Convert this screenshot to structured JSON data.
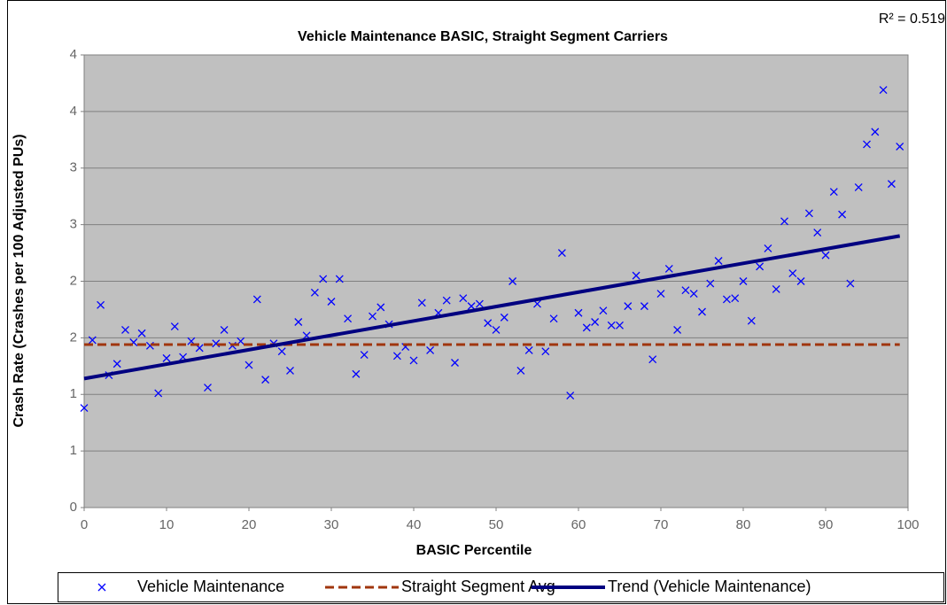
{
  "chart_data": {
    "type": "scatter",
    "title": "Vehicle Maintenance BASIC, Straight Segment Carriers",
    "xlabel": "BASIC Percentile",
    "ylabel": "Crash Rate (Crashes per 100 Adjusted PUs)",
    "annotation": "R² = 0.519",
    "xlim": [
      0,
      100
    ],
    "xticks": [
      0,
      10,
      20,
      30,
      40,
      50,
      60,
      70,
      80,
      90,
      100
    ],
    "ylim": [
      0,
      4
    ],
    "yticks": [
      0,
      {
        "value": 0.5,
        "label": "1"
      },
      1,
      {
        "value": 1.5,
        "label": "2"
      },
      2,
      {
        "value": 2.5,
        "label": "3"
      },
      3,
      {
        "value": 3.5,
        "label": "4"
      },
      4
    ],
    "grid": true,
    "legend": "bottom",
    "series": [
      {
        "name": "Vehicle Maintenance",
        "color": "#0000ff",
        "style": "marker",
        "x": [
          0,
          1,
          2,
          3,
          4,
          5,
          6,
          7,
          8,
          9,
          10,
          11,
          12,
          13,
          14,
          15,
          16,
          17,
          18,
          19,
          20,
          21,
          22,
          23,
          24,
          25,
          26,
          27,
          28,
          29,
          30,
          31,
          32,
          33,
          34,
          35,
          36,
          37,
          38,
          39,
          40,
          41,
          42,
          43,
          44,
          45,
          46,
          47,
          48,
          49,
          50,
          51,
          52,
          53,
          54,
          55,
          56,
          57,
          58,
          59,
          60,
          61,
          62,
          63,
          64,
          65,
          66,
          67,
          68,
          69,
          70,
          71,
          72,
          73,
          74,
          75,
          76,
          77,
          78,
          79,
          80,
          81,
          82,
          83,
          84,
          85,
          86,
          87,
          88,
          89,
          90,
          91,
          92,
          93,
          94,
          95,
          96,
          97,
          98,
          99
        ],
        "values": [
          0.88,
          1.48,
          1.79,
          1.17,
          1.27,
          1.57,
          1.46,
          1.54,
          1.43,
          1.01,
          1.32,
          1.6,
          1.33,
          1.47,
          1.41,
          1.06,
          1.45,
          1.57,
          1.43,
          1.47,
          1.26,
          1.84,
          1.13,
          1.45,
          1.38,
          1.21,
          1.64,
          1.52,
          1.9,
          2.02,
          1.82,
          2.02,
          1.67,
          1.18,
          1.35,
          1.69,
          1.77,
          1.62,
          1.34,
          1.42,
          1.3,
          1.81,
          1.39,
          1.72,
          1.83,
          1.28,
          1.85,
          1.78,
          1.8,
          1.63,
          1.57,
          1.68,
          2.0,
          1.21,
          1.39,
          1.8,
          1.38,
          1.67,
          2.25,
          0.99,
          1.72,
          1.59,
          1.64,
          1.74,
          1.61,
          1.61,
          1.78,
          2.05,
          1.78,
          1.31,
          1.89,
          2.11,
          1.57,
          1.92,
          1.89,
          1.73,
          1.98,
          2.18,
          1.84,
          1.85,
          2.0,
          1.65,
          2.13,
          2.29,
          1.93,
          2.53,
          2.07,
          2.0,
          2.6,
          2.43,
          2.23,
          2.79,
          2.59,
          1.98,
          2.83,
          3.21,
          3.32,
          3.69,
          2.86,
          3.19
        ]
      },
      {
        "name": "Straight Segment Avg",
        "color": "#a0360e",
        "style": "dashed",
        "x": [
          0,
          99
        ],
        "values": [
          1.44,
          1.44
        ]
      },
      {
        "name": "Trend (Vehicle Maintenance)",
        "color": "#000080",
        "style": "solid",
        "x": [
          0,
          99
        ],
        "values": [
          1.14,
          2.4
        ]
      }
    ]
  }
}
